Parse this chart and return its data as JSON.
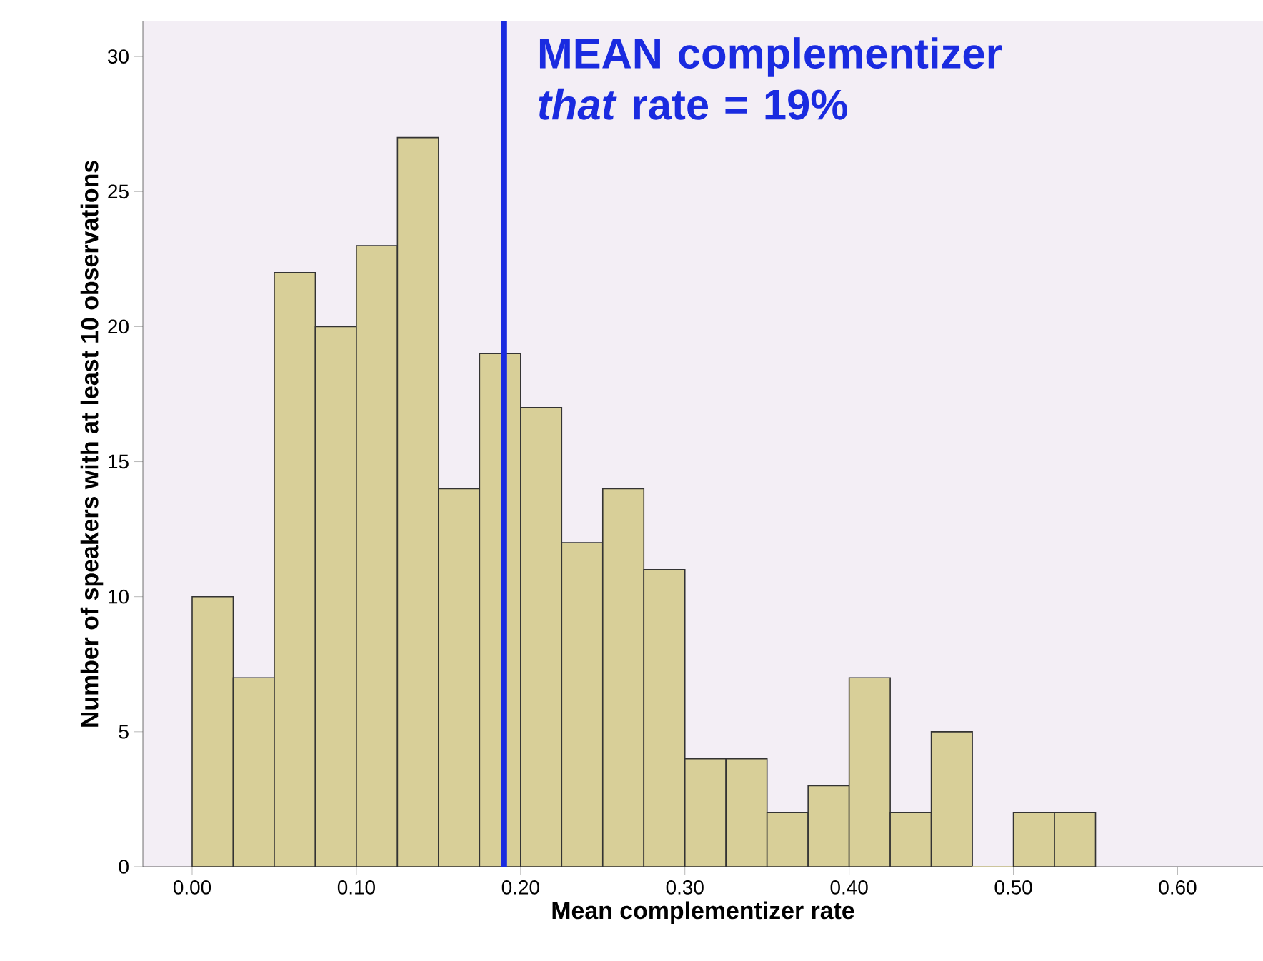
{
  "chart_data": {
    "type": "histogram",
    "xlabel": "Mean complementizer rate",
    "ylabel": "Number of speakers with at least 10 observations",
    "bins": [
      0.0,
      0.025,
      0.05,
      0.075,
      0.1,
      0.125,
      0.15,
      0.175,
      0.2,
      0.225,
      0.25,
      0.275,
      0.3,
      0.325,
      0.35,
      0.375,
      0.4,
      0.425,
      0.45,
      0.475,
      0.5,
      0.525,
      0.55
    ],
    "values": [
      10,
      7,
      22,
      20,
      23,
      27,
      14,
      19,
      17,
      12,
      14,
      11,
      4,
      4,
      2,
      3,
      7,
      2,
      5,
      0,
      2,
      2
    ],
    "color": "#d8cf98",
    "xlim": [
      -0.03,
      0.652
    ],
    "ylim": [
      0,
      31.3
    ],
    "xticks": [
      {
        "value": 0,
        "label": "0.00"
      },
      {
        "value": 0.1,
        "label": "0.10"
      },
      {
        "value": 0.2,
        "label": "0.20"
      },
      {
        "value": 0.3,
        "label": "0.30"
      },
      {
        "value": 0.4,
        "label": "0.40"
      },
      {
        "value": 0.5,
        "label": "0.50"
      },
      {
        "value": 0.6,
        "label": "0.60"
      }
    ],
    "yticks": [
      0,
      5,
      10,
      15,
      20,
      25,
      30
    ],
    "ref_lines": [
      {
        "axis": "x",
        "value": 0.19,
        "label": "MEAN complementizer *that* rate = 19%",
        "color": "#1a2be0"
      }
    ]
  }
}
